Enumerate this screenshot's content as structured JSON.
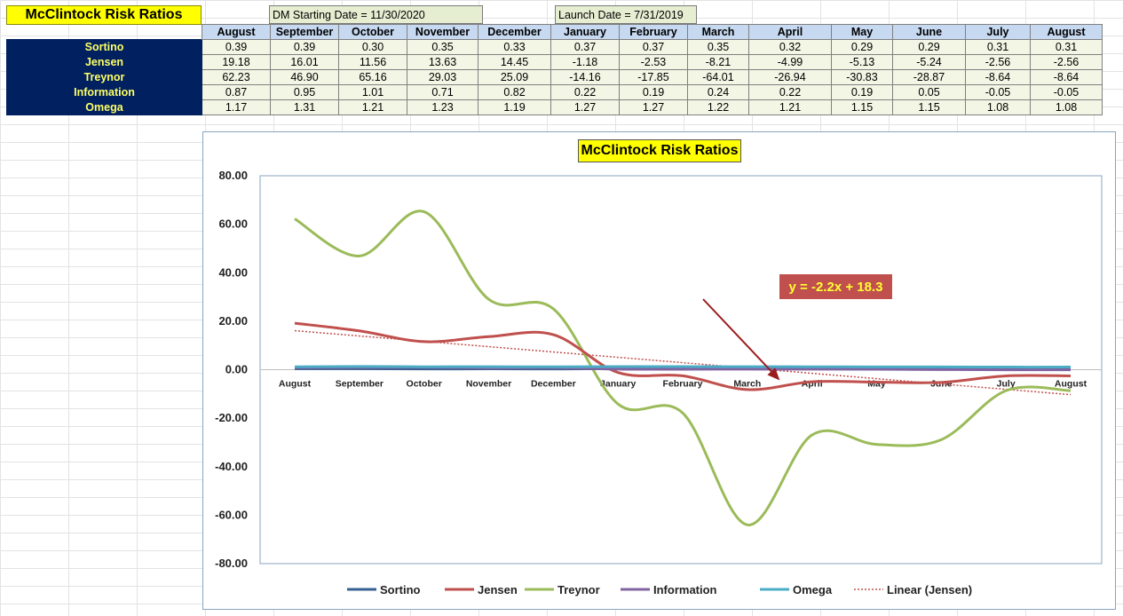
{
  "sheet": {
    "title": "McClintock Risk Ratios",
    "dm_start": "DM Starting Date = 11/30/2020",
    "launch": "Launch Date = 7/31/2019"
  },
  "table": {
    "columns": [
      "August",
      "September",
      "October",
      "November",
      "December",
      "January",
      "February",
      "March",
      "April",
      "May",
      "June",
      "July",
      "August"
    ],
    "rows": [
      {
        "label": "Sortino",
        "values": [
          "0.39",
          "0.39",
          "0.30",
          "0.35",
          "0.33",
          "0.37",
          "0.37",
          "0.35",
          "0.32",
          "0.29",
          "0.29",
          "0.31",
          "0.31"
        ]
      },
      {
        "label": "Jensen",
        "values": [
          "19.18",
          "16.01",
          "11.56",
          "13.63",
          "14.45",
          "-1.18",
          "-2.53",
          "-8.21",
          "-4.99",
          "-5.13",
          "-5.24",
          "-2.56",
          "-2.56"
        ]
      },
      {
        "label": "Treynor",
        "values": [
          "62.23",
          "46.90",
          "65.16",
          "29.03",
          "25.09",
          "-14.16",
          "-17.85",
          "-64.01",
          "-26.94",
          "-30.83",
          "-28.87",
          "-8.64",
          "-8.64"
        ]
      },
      {
        "label": "Information",
        "values": [
          "0.87",
          "0.95",
          "1.01",
          "0.71",
          "0.82",
          "0.22",
          "0.19",
          "0.24",
          "0.22",
          "0.19",
          "0.05",
          "-0.05",
          "-0.05"
        ]
      },
      {
        "label": "Omega",
        "values": [
          "1.17",
          "1.31",
          "1.21",
          "1.23",
          "1.19",
          "1.27",
          "1.27",
          "1.22",
          "1.21",
          "1.15",
          "1.15",
          "1.08",
          "1.08"
        ]
      }
    ]
  },
  "chart_data": {
    "type": "line",
    "title": "McClintock Risk Ratios",
    "categories": [
      "August",
      "September",
      "October",
      "November",
      "December",
      "January",
      "February",
      "March",
      "April",
      "May",
      "June",
      "July",
      "August"
    ],
    "ylim": [
      -80,
      80
    ],
    "y_ticks": [
      "80.00",
      "60.00",
      "40.00",
      "20.00",
      "0.00",
      "-20.00",
      "-40.00",
      "-60.00",
      "-80.00"
    ],
    "y_tick_values": [
      80,
      60,
      40,
      20,
      0,
      -20,
      -40,
      -60,
      -80
    ],
    "grid": false,
    "legend_position": "bottom",
    "series": [
      {
        "name": "Sortino",
        "color": "#376092",
        "values": [
          0.39,
          0.39,
          0.3,
          0.35,
          0.33,
          0.37,
          0.37,
          0.35,
          0.32,
          0.29,
          0.29,
          0.31,
          0.31
        ]
      },
      {
        "name": "Jensen",
        "color": "#c0504d",
        "values": [
          19.18,
          16.01,
          11.56,
          13.63,
          14.45,
          -1.18,
          -2.53,
          -8.21,
          -4.99,
          -5.13,
          -5.24,
          -2.56,
          -2.56
        ]
      },
      {
        "name": "Treynor",
        "color": "#9bbb59",
        "values": [
          62.23,
          46.9,
          65.16,
          29.03,
          25.09,
          -14.16,
          -17.85,
          -64.01,
          -26.94,
          -30.83,
          -28.87,
          -8.64,
          -8.64
        ]
      },
      {
        "name": "Information",
        "color": "#8064a2",
        "values": [
          0.87,
          0.95,
          1.01,
          0.71,
          0.82,
          0.22,
          0.19,
          0.24,
          0.22,
          0.19,
          0.05,
          -0.05,
          -0.05
        ]
      },
      {
        "name": "Omega",
        "color": "#4bacc6",
        "values": [
          1.17,
          1.31,
          1.21,
          1.23,
          1.19,
          1.27,
          1.27,
          1.22,
          1.21,
          1.15,
          1.15,
          1.08,
          1.08
        ]
      }
    ],
    "trendline": {
      "name": "Linear (Jensen)",
      "color": "#c0504d",
      "slope": -2.2,
      "intercept": 18.3
    },
    "annotation": {
      "text": "y = -2.2x + 18.3",
      "arrow_color": "#9b1c1c"
    }
  }
}
